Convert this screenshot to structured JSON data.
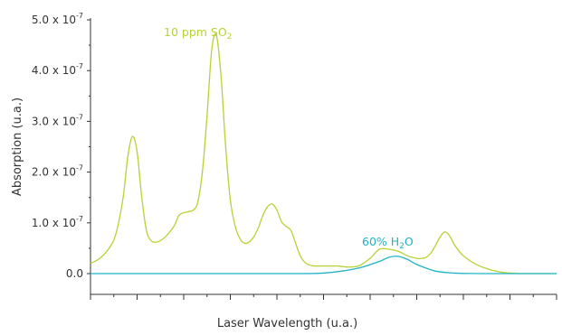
{
  "chart_data": {
    "type": "line",
    "title": "",
    "xlabel": "Laser Wavelength (u.a.)",
    "ylabel": "Absorption (u.a.)",
    "xlim": [
      0,
      100
    ],
    "ylim": [
      0,
      5e-07
    ],
    "x_ticks_count": 10,
    "x_tick_labels_shown": false,
    "y_ticks": [
      {
        "value": 0.0,
        "label": "0.0"
      },
      {
        "value": 1e-07,
        "label": "1.0 x 10",
        "exp": "-7"
      },
      {
        "value": 2e-07,
        "label": "2.0 x 10",
        "exp": "-7"
      },
      {
        "value": 3e-07,
        "label": "3.0 x 10",
        "exp": "-7"
      },
      {
        "value": 4e-07,
        "label": "4.0 x 10",
        "exp": "-7"
      },
      {
        "value": 5e-07,
        "label": "5.0 x 10",
        "exp": "-7"
      }
    ],
    "grid": false,
    "legend": "inline labels",
    "series": [
      {
        "name": "10 ppm SO2",
        "label_main": "10 ppm SO",
        "label_sub": "2",
        "color": "#b5d335",
        "x": [
          0,
          2,
          4,
          5.5,
          7,
          8,
          9,
          10,
          11,
          12,
          13,
          14,
          15,
          16,
          17,
          18,
          19,
          20,
          21,
          22,
          23,
          24,
          25,
          26,
          27,
          28,
          29,
          30,
          31,
          32,
          33,
          34,
          35,
          36,
          37,
          38,
          39,
          40,
          41,
          42,
          43,
          44,
          45,
          46,
          47,
          48,
          49,
          50,
          51,
          52,
          53,
          54,
          55,
          56,
          57,
          58,
          60,
          62,
          64,
          66,
          68,
          70,
          71,
          72,
          73,
          74,
          75,
          76,
          77,
          78,
          79,
          80,
          81,
          82,
          83,
          84,
          85,
          86,
          87,
          88,
          89,
          90,
          91,
          92,
          94,
          96,
          98,
          100
        ],
        "y": [
          2e-08,
          3e-08,
          5e-08,
          8e-08,
          1.5e-07,
          2.3e-07,
          2.7e-07,
          2.4e-07,
          1.5e-07,
          8.5e-08,
          6.5e-08,
          6.2e-08,
          6.5e-08,
          7.2e-08,
          8.2e-08,
          9.5e-08,
          1.15e-07,
          1.2e-07,
          1.22e-07,
          1.25e-07,
          1.4e-07,
          2e-07,
          3.1e-07,
          4.4e-07,
          4.7e-07,
          3.9e-07,
          2.5e-07,
          1.45e-07,
          9.5e-08,
          7e-08,
          6e-08,
          6.2e-08,
          7.2e-08,
          9e-08,
          1.15e-07,
          1.32e-07,
          1.37e-07,
          1.25e-07,
          1.02e-07,
          9.3e-08,
          8.5e-08,
          6e-08,
          3.5e-08,
          2.2e-08,
          1.7e-08,
          1.5e-08,
          1.5e-08,
          1.5e-08,
          1.5e-08,
          1.5e-08,
          1.5e-08,
          1.4e-08,
          1.3e-08,
          1.3e-08,
          1.4e-08,
          1.7e-08,
          3e-08,
          4.8e-08,
          4.8e-08,
          4.4e-08,
          3.5e-08,
          3e-08,
          3e-08,
          3.2e-08,
          4e-08,
          5.5e-08,
          7.2e-08,
          8.2e-08,
          7.5e-08,
          5.8e-08,
          4.5e-08,
          3.5e-08,
          2.8e-08,
          2.2e-08,
          1.7e-08,
          1.3e-08,
          1e-08,
          7e-09,
          5e-09,
          3e-09,
          2e-09,
          1e-09,
          5e-10,
          0.0,
          0.0,
          0.0,
          0.0,
          0.0
        ]
      },
      {
        "name": "60% H2O",
        "label_main": "60% H",
        "label_sub": "2",
        "label_tail": "O",
        "color": "#1fb3c8",
        "x": [
          0,
          10,
          20,
          30,
          40,
          44,
          47,
          50,
          54,
          58,
          62,
          64,
          66,
          68,
          70,
          74,
          78,
          82,
          86,
          90,
          100
        ],
        "y": [
          0,
          0,
          0,
          0,
          0,
          0,
          1e-10,
          1e-09,
          5e-09,
          1.2e-08,
          2.4e-08,
          3.2e-08,
          3.4e-08,
          2.8e-08,
          1.8e-08,
          5e-09,
          1e-09,
          2e-10,
          0,
          0,
          0
        ]
      }
    ]
  }
}
